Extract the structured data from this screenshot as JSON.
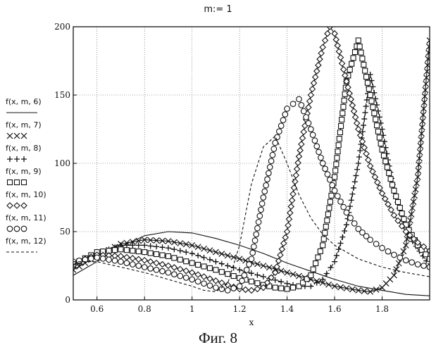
{
  "header": {
    "text": "m:= 1"
  },
  "caption": {
    "text": "Фиг. 8"
  },
  "chart_data": {
    "type": "line",
    "xlabel": "x",
    "ylabel": "",
    "xlim": [
      0.5,
      2.0
    ],
    "ylim": [
      0,
      200
    ],
    "x_ticks": [
      0.6,
      0.8,
      1,
      1.2,
      1.4,
      1.6,
      1.8
    ],
    "x_tick_labels": [
      "0.6",
      "0.8",
      "1",
      "1.2",
      "1.4",
      "1.6",
      "1.8"
    ],
    "y_ticks": [
      0,
      50,
      100,
      150,
      200
    ],
    "y_tick_labels": [
      "0",
      "50",
      "100",
      "150",
      "200"
    ],
    "grid": true,
    "legend_position": "left",
    "series": [
      {
        "name": "f(x, m, 6)",
        "marker": "none",
        "line": "solid",
        "x": [
          0.5,
          0.6,
          0.7,
          0.8,
          0.9,
          1.0,
          1.1,
          1.2,
          1.3,
          1.4,
          1.5,
          1.6,
          1.7,
          1.8,
          1.9,
          2.0
        ],
        "y": [
          18,
          28,
          39,
          47,
          50,
          49,
          45,
          40,
          34,
          27,
          21,
          15,
          10,
          7,
          4,
          3
        ]
      },
      {
        "name": "f(x, m, 7)",
        "marker": "x",
        "line": "solid",
        "x": [
          0.5,
          0.6,
          0.7,
          0.8,
          0.9,
          1.0,
          1.1,
          1.2,
          1.3,
          1.4,
          1.5,
          1.6,
          1.7,
          1.75,
          1.8,
          1.85,
          1.9,
          1.95,
          2.0
        ],
        "y": [
          22,
          32,
          41,
          44,
          43,
          40,
          35,
          30,
          25,
          20,
          15,
          10,
          7,
          6,
          9,
          18,
          40,
          90,
          190
        ]
      },
      {
        "name": "f(x, m, 8)",
        "marker": "plus",
        "line": "dash-dot",
        "x": [
          0.5,
          0.6,
          0.7,
          0.8,
          0.9,
          1.0,
          1.1,
          1.2,
          1.3,
          1.4,
          1.45,
          1.5,
          1.55,
          1.6,
          1.65,
          1.7,
          1.75,
          1.8,
          1.85,
          1.9,
          2.0
        ],
        "y": [
          24,
          34,
          40,
          40,
          38,
          34,
          28,
          22,
          17,
          12,
          10,
          10,
          15,
          28,
          55,
          100,
          165,
          125,
          80,
          50,
          25
        ]
      },
      {
        "name": "f(x, m, 9)",
        "marker": "square",
        "line": "dash-dot",
        "x": [
          0.5,
          0.6,
          0.7,
          0.8,
          0.9,
          1.0,
          1.1,
          1.2,
          1.3,
          1.35,
          1.4,
          1.45,
          1.5,
          1.55,
          1.6,
          1.65,
          1.7,
          1.75,
          1.8,
          1.85,
          1.9,
          1.95,
          2.0
        ],
        "y": [
          26,
          35,
          37,
          35,
          32,
          27,
          22,
          16,
          11,
          9,
          8,
          10,
          18,
          40,
          90,
          160,
          190,
          150,
          110,
          80,
          55,
          40,
          30
        ]
      },
      {
        "name": "f(x, m, 10)",
        "marker": "diamond",
        "line": "solid",
        "x": [
          0.5,
          0.6,
          0.7,
          0.8,
          0.9,
          1.0,
          1.1,
          1.2,
          1.25,
          1.3,
          1.35,
          1.4,
          1.45,
          1.5,
          1.55,
          1.58,
          1.6,
          1.65,
          1.7,
          1.75,
          1.8,
          1.85,
          1.9,
          1.95,
          2.0
        ],
        "y": [
          27,
          33,
          32,
          29,
          25,
          20,
          14,
          8,
          7,
          9,
          20,
          50,
          105,
          150,
          185,
          200,
          195,
          160,
          125,
          98,
          78,
          62,
          50,
          42,
          36
        ]
      },
      {
        "name": "f(x, m, 11)",
        "marker": "circle",
        "line": "dotted",
        "x": [
          0.5,
          0.6,
          0.7,
          0.8,
          0.9,
          1.0,
          1.1,
          1.15,
          1.2,
          1.25,
          1.3,
          1.35,
          1.4,
          1.45,
          1.5,
          1.55,
          1.6,
          1.65,
          1.7,
          1.75,
          1.8,
          1.85,
          1.9,
          1.95,
          2.0
        ],
        "y": [
          28,
          31,
          28,
          24,
          20,
          15,
          9,
          7,
          10,
          30,
          75,
          115,
          140,
          147,
          125,
          100,
          80,
          64,
          52,
          44,
          38,
          33,
          29,
          26,
          24
        ]
      },
      {
        "name": "f(x, m, 12)",
        "marker": "none",
        "line": "dashed",
        "x": [
          0.5,
          0.6,
          0.7,
          0.8,
          0.9,
          1.0,
          1.05,
          1.1,
          1.15,
          1.2,
          1.25,
          1.3,
          1.35,
          1.4,
          1.45,
          1.5,
          1.55,
          1.6,
          1.7,
          1.8,
          1.9,
          2.0
        ],
        "y": [
          28,
          28,
          24,
          20,
          15,
          10,
          7,
          6,
          12,
          40,
          85,
          112,
          120,
          100,
          77,
          60,
          48,
          40,
          30,
          24,
          20,
          17
        ]
      }
    ]
  }
}
